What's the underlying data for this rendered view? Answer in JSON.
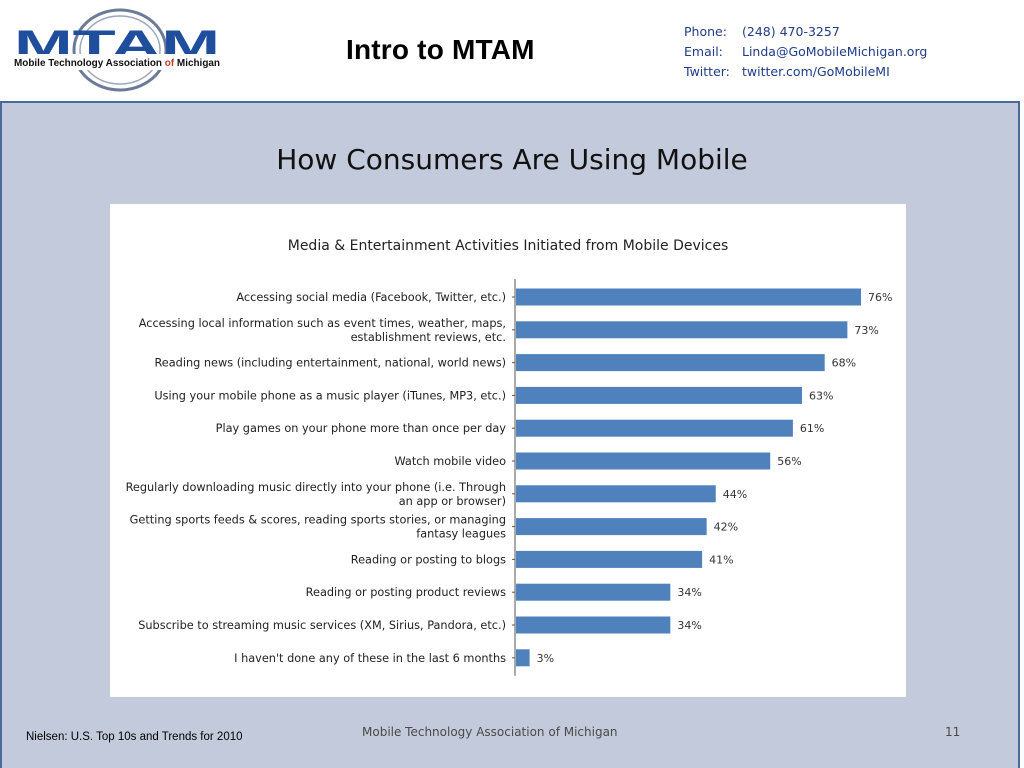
{
  "header": {
    "logo": {
      "wordmark": "MTAM",
      "tagline_main": "Mobile Technology Association ",
      "tagline_of": "of",
      "tagline_end": " Michigan"
    },
    "title": "Intro to MTAM",
    "contact": {
      "phone_label": "Phone:",
      "phone": "(248) 470-3257",
      "email_label": "Email:",
      "email": "Linda@GoMobileMichigan.org",
      "twitter_label": "Twitter:",
      "twitter": "twitter.com/GoMobileMI"
    }
  },
  "slide": {
    "title": "How Consumers Are Using Mobile"
  },
  "footer": {
    "source": "Nielsen:  U.S. Top 10s and Trends for 2010",
    "org": "Mobile Technology Association of Michigan",
    "page": "11"
  },
  "colors": {
    "bar": "#4f81bd",
    "panel_bg": "#c3cadb",
    "contact_text": "#1f3c88",
    "logo_blue": "#1f4e9c"
  },
  "chart_data": {
    "type": "bar",
    "orientation": "horizontal",
    "title": "Media & Entertainment Activities Initiated from Mobile Devices",
    "value_suffix": "%",
    "xlim": [
      0,
      80
    ],
    "grid": false,
    "categories": [
      [
        "Accessing social media (Facebook, Twitter, etc.)"
      ],
      [
        "Accessing local information such as event times, weather, maps,",
        "establishment reviews, etc."
      ],
      [
        "Reading news (including entertainment, national, world news)"
      ],
      [
        "Using your mobile phone as a music player (iTunes, MP3, etc.)"
      ],
      [
        "Play games on your phone more than once per day"
      ],
      [
        "Watch mobile video"
      ],
      [
        "Regularly downloading music directly into your phone (i.e. Through",
        "an app or browser)"
      ],
      [
        "Getting sports feeds & scores, reading sports stories, or managing",
        "fantasy leagues"
      ],
      [
        "Reading or posting to blogs"
      ],
      [
        "Reading or posting product reviews"
      ],
      [
        "Subscribe to streaming music services (XM, Sirius, Pandora, etc.)"
      ],
      [
        "I haven't done any of these in the last 6 months"
      ]
    ],
    "values": [
      76,
      73,
      68,
      63,
      61,
      56,
      44,
      42,
      41,
      34,
      34,
      3
    ]
  }
}
